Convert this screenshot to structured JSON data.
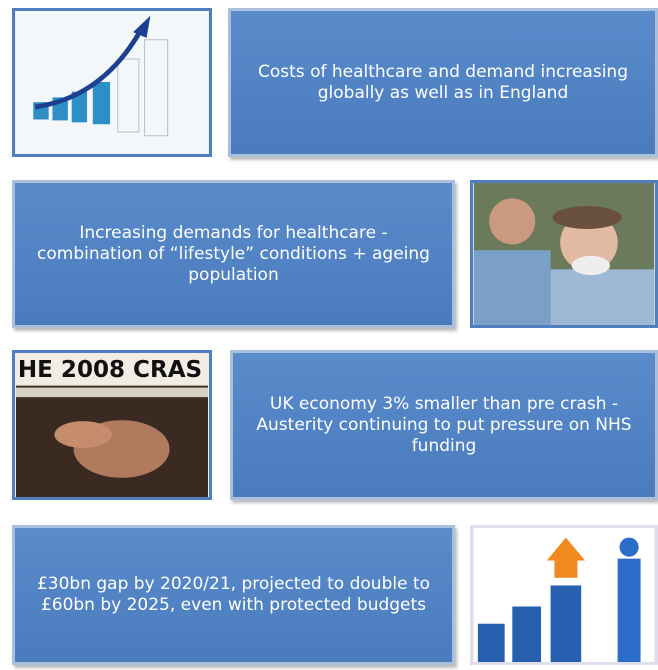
{
  "rows": [
    {
      "text": "Costs of healthcare and demand increasing globally as well as in England"
    },
    {
      "text": "Increasing demands for healthcare - combination of “lifestyle” conditions + ageing population"
    },
    {
      "text": "UK economy 3% smaller than pre crash - Austerity continuing to put pressure on NHS funding",
      "image_text": "HE 2008 CRAS"
    },
    {
      "text": "£30bn gap by 2020/21, projected to double to £60bn by 2025, even with protected budgets"
    }
  ]
}
